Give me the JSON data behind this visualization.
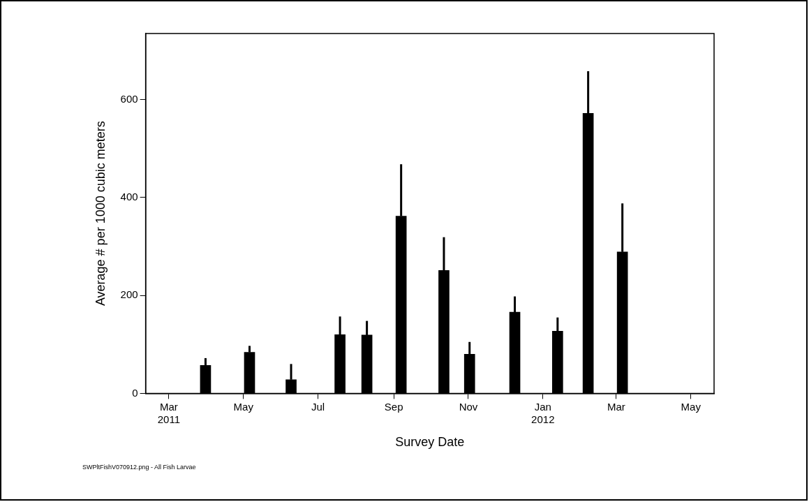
{
  "chart_data": {
    "type": "bar",
    "xlabel": "Survey Date",
    "ylabel": "Average # per 1000 cubic meters",
    "x": [
      "2011-03-31",
      "2011-05-06",
      "2011-06-09",
      "2011-07-19",
      "2011-08-10",
      "2011-09-07",
      "2011-10-12",
      "2011-11-02",
      "2011-12-09",
      "2012-01-13",
      "2012-02-07",
      "2012-03-06"
    ],
    "values": [
      57,
      84,
      28,
      120,
      119,
      362,
      251,
      80,
      166,
      127,
      572,
      289
    ],
    "errors": [
      [
        57,
        72
      ],
      [
        84,
        97
      ],
      [
        28,
        60
      ],
      [
        120,
        157
      ],
      [
        119,
        148
      ],
      [
        362,
        468
      ],
      [
        251,
        319
      ],
      [
        80,
        105
      ],
      [
        166,
        198
      ],
      [
        127,
        155
      ],
      [
        572,
        658
      ],
      [
        289,
        388
      ]
    ],
    "color": "#000000",
    "xlim": [
      "2011-02-10",
      "2012-05-20"
    ],
    "xticks": [
      {
        "value": "2011-03-01",
        "label": "Mar 2011"
      },
      {
        "value": "2011-05-01",
        "label": "May"
      },
      {
        "value": "2011-07-01",
        "label": "Jul"
      },
      {
        "value": "2011-09-01",
        "label": "Sep"
      },
      {
        "value": "2011-11-01",
        "label": "Nov"
      },
      {
        "value": "2012-01-01",
        "label": "Jan 2012"
      },
      {
        "value": "2012-03-01",
        "label": "Mar"
      },
      {
        "value": "2012-05-01",
        "label": "May"
      }
    ],
    "ylim": [
      0,
      735
    ],
    "yticks": [
      0,
      200,
      400,
      600
    ],
    "grid": false,
    "legend": false,
    "annotations": [
      "SWPltFishV070912.png - All Fish Larvae"
    ]
  }
}
